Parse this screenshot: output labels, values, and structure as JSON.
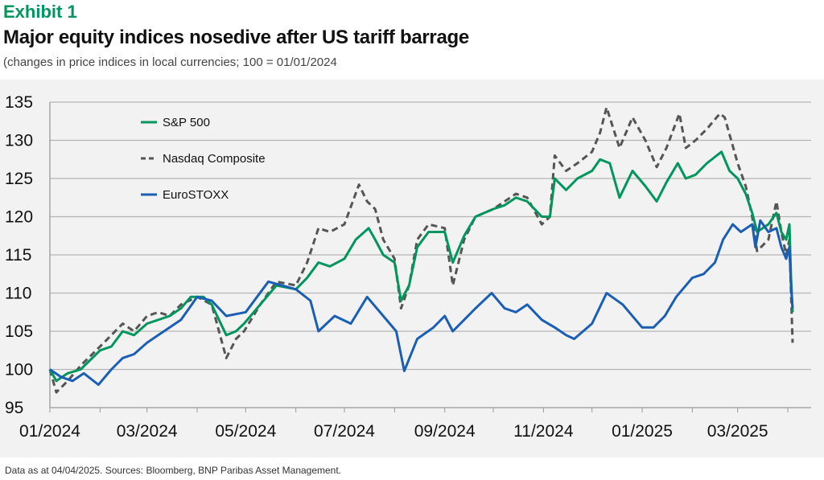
{
  "header": {
    "exhibit": "Exhibit 1",
    "title": "Major equity indices nosedive after US tariff barrage",
    "subtitle": "(changes in price indices in local currencies; 100 = 01/01/2024"
  },
  "footer": "Data as at 04/04/2025. Sources: Bloomberg, BNP Paribas Asset Management.",
  "chart_data": {
    "type": "line",
    "title": "Major equity indices nosedive after US tariff barrage",
    "xlabel": "",
    "ylabel": "",
    "ylim": [
      95,
      135
    ],
    "yticks": [
      "95",
      "100",
      "105",
      "110",
      "115",
      "120",
      "125",
      "130",
      "135"
    ],
    "xlim": [
      "2024-01-01",
      "2025-04-30"
    ],
    "xticks": [
      {
        "date": "2024-01-01",
        "label": "01/2024"
      },
      {
        "date": "2024-03-01",
        "label": "03/2024"
      },
      {
        "date": "2024-05-01",
        "label": "05/2024"
      },
      {
        "date": "2024-07-01",
        "label": "07/2024"
      },
      {
        "date": "2024-09-01",
        "label": "09/2024"
      },
      {
        "date": "2024-11-01",
        "label": "11/2024"
      },
      {
        "date": "2025-01-01",
        "label": "01/2025"
      },
      {
        "date": "2025-03-01",
        "label": "03/2025"
      }
    ],
    "minor_ticks": [
      "2024-02-01",
      "2024-04-01",
      "2024-06-01",
      "2024-08-01",
      "2024-10-01",
      "2024-12-01",
      "2025-02-01",
      "2025-04-01"
    ],
    "grid": true,
    "legend": "top-left",
    "series": [
      {
        "name": "S&P 500",
        "color": "#00965e",
        "dash": false,
        "points": [
          [
            "2024-01-01",
            100
          ],
          [
            "2024-01-05",
            98.5
          ],
          [
            "2024-01-12",
            99.5
          ],
          [
            "2024-01-20",
            100
          ],
          [
            "2024-02-01",
            102.5
          ],
          [
            "2024-02-08",
            103
          ],
          [
            "2024-02-15",
            105
          ],
          [
            "2024-02-22",
            104.5
          ],
          [
            "2024-03-01",
            106
          ],
          [
            "2024-03-08",
            106.5
          ],
          [
            "2024-03-15",
            107
          ],
          [
            "2024-03-22",
            108
          ],
          [
            "2024-03-28",
            109.5
          ],
          [
            "2024-04-05",
            109.5
          ],
          [
            "2024-04-10",
            108.5
          ],
          [
            "2024-04-19",
            104.5
          ],
          [
            "2024-04-25",
            105
          ],
          [
            "2024-04-30",
            106
          ],
          [
            "2024-05-10",
            108.5
          ],
          [
            "2024-05-20",
            111
          ],
          [
            "2024-06-01",
            110.5
          ],
          [
            "2024-06-08",
            112
          ],
          [
            "2024-06-15",
            114
          ],
          [
            "2024-06-22",
            113.5
          ],
          [
            "2024-07-01",
            114.5
          ],
          [
            "2024-07-08",
            117
          ],
          [
            "2024-07-16",
            118.5
          ],
          [
            "2024-07-20",
            117
          ],
          [
            "2024-07-25",
            115
          ],
          [
            "2024-08-01",
            114
          ],
          [
            "2024-08-05",
            109
          ],
          [
            "2024-08-10",
            111
          ],
          [
            "2024-08-15",
            116
          ],
          [
            "2024-08-22",
            118
          ],
          [
            "2024-09-01",
            118
          ],
          [
            "2024-09-06",
            114
          ],
          [
            "2024-09-13",
            117.5
          ],
          [
            "2024-09-20",
            120
          ],
          [
            "2024-10-01",
            121
          ],
          [
            "2024-10-08",
            121.5
          ],
          [
            "2024-10-15",
            122.5
          ],
          [
            "2024-10-22",
            122
          ],
          [
            "2024-10-31",
            120
          ],
          [
            "2024-11-05",
            120
          ],
          [
            "2024-11-08",
            125
          ],
          [
            "2024-11-15",
            123.5
          ],
          [
            "2024-11-22",
            125
          ],
          [
            "2024-12-01",
            126
          ],
          [
            "2024-12-06",
            127.5
          ],
          [
            "2024-12-12",
            127
          ],
          [
            "2024-12-18",
            122.5
          ],
          [
            "2024-12-26",
            126
          ],
          [
            "2025-01-03",
            124
          ],
          [
            "2025-01-10",
            122
          ],
          [
            "2025-01-16",
            124.5
          ],
          [
            "2025-01-23",
            127
          ],
          [
            "2025-01-28",
            125
          ],
          [
            "2025-02-03",
            125.5
          ],
          [
            "2025-02-10",
            127
          ],
          [
            "2025-02-19",
            128.5
          ],
          [
            "2025-02-24",
            126
          ],
          [
            "2025-03-01",
            125
          ],
          [
            "2025-03-06",
            123
          ],
          [
            "2025-03-10",
            120.5
          ],
          [
            "2025-03-13",
            118
          ],
          [
            "2025-03-20",
            119
          ],
          [
            "2025-03-25",
            120.5
          ],
          [
            "2025-03-28",
            118
          ],
          [
            "2025-03-31",
            117
          ],
          [
            "2025-04-02",
            119
          ],
          [
            "2025-04-03",
            112
          ],
          [
            "2025-04-04",
            107.5
          ]
        ]
      },
      {
        "name": "Nasdaq Composite",
        "color": "#555555",
        "dash": true,
        "points": [
          [
            "2024-01-01",
            100
          ],
          [
            "2024-01-05",
            97
          ],
          [
            "2024-01-12",
            98.5
          ],
          [
            "2024-01-20",
            100.5
          ],
          [
            "2024-02-01",
            103
          ],
          [
            "2024-02-08",
            104.5
          ],
          [
            "2024-02-15",
            106
          ],
          [
            "2024-02-22",
            105
          ],
          [
            "2024-03-01",
            107
          ],
          [
            "2024-03-08",
            107.5
          ],
          [
            "2024-03-15",
            107
          ],
          [
            "2024-03-22",
            108.5
          ],
          [
            "2024-04-01",
            109.5
          ],
          [
            "2024-04-10",
            108.5
          ],
          [
            "2024-04-19",
            101.5
          ],
          [
            "2024-04-25",
            104
          ],
          [
            "2024-04-30",
            105
          ],
          [
            "2024-05-10",
            108.5
          ],
          [
            "2024-05-20",
            111.5
          ],
          [
            "2024-06-01",
            111
          ],
          [
            "2024-06-08",
            114
          ],
          [
            "2024-06-15",
            118.5
          ],
          [
            "2024-06-22",
            118
          ],
          [
            "2024-07-01",
            119
          ],
          [
            "2024-07-10",
            124.2
          ],
          [
            "2024-07-15",
            122
          ],
          [
            "2024-07-20",
            121
          ],
          [
            "2024-07-25",
            117
          ],
          [
            "2024-08-01",
            114.5
          ],
          [
            "2024-08-05",
            108
          ],
          [
            "2024-08-10",
            111
          ],
          [
            "2024-08-15",
            117
          ],
          [
            "2024-08-22",
            119
          ],
          [
            "2024-09-01",
            118.5
          ],
          [
            "2024-09-06",
            111
          ],
          [
            "2024-09-13",
            117
          ],
          [
            "2024-09-20",
            120
          ],
          [
            "2024-10-01",
            121
          ],
          [
            "2024-10-08",
            122
          ],
          [
            "2024-10-15",
            123
          ],
          [
            "2024-10-22",
            122.5
          ],
          [
            "2024-10-31",
            119
          ],
          [
            "2024-11-05",
            120
          ],
          [
            "2024-11-08",
            128
          ],
          [
            "2024-11-15",
            126
          ],
          [
            "2024-11-22",
            127
          ],
          [
            "2024-12-01",
            128.5
          ],
          [
            "2024-12-06",
            131
          ],
          [
            "2024-12-10",
            134.3
          ],
          [
            "2024-12-18",
            129
          ],
          [
            "2024-12-26",
            133
          ],
          [
            "2025-01-03",
            130
          ],
          [
            "2025-01-10",
            126.5
          ],
          [
            "2025-01-16",
            129
          ],
          [
            "2025-01-24",
            133.5
          ],
          [
            "2025-01-28",
            129
          ],
          [
            "2025-02-03",
            130
          ],
          [
            "2025-02-10",
            131.5
          ],
          [
            "2025-02-18",
            133.5
          ],
          [
            "2025-02-21",
            133
          ],
          [
            "2025-03-01",
            127
          ],
          [
            "2025-03-06",
            124
          ],
          [
            "2025-03-10",
            120
          ],
          [
            "2025-03-13",
            115.5
          ],
          [
            "2025-03-20",
            117
          ],
          [
            "2025-03-25",
            122
          ],
          [
            "2025-03-28",
            118
          ],
          [
            "2025-03-31",
            115
          ],
          [
            "2025-04-02",
            117
          ],
          [
            "2025-04-03",
            110
          ],
          [
            "2025-04-04",
            103.5
          ]
        ]
      },
      {
        "name": "EuroSTOXX",
        "color": "#1a5fb4",
        "dash": false,
        "points": [
          [
            "2024-01-01",
            100
          ],
          [
            "2024-01-08",
            99
          ],
          [
            "2024-01-15",
            98.5
          ],
          [
            "2024-01-22",
            99.5
          ],
          [
            "2024-01-31",
            98
          ],
          [
            "2024-02-08",
            100
          ],
          [
            "2024-02-15",
            101.5
          ],
          [
            "2024-02-22",
            102
          ],
          [
            "2024-03-01",
            103.5
          ],
          [
            "2024-03-08",
            104.5
          ],
          [
            "2024-03-15",
            105.5
          ],
          [
            "2024-03-22",
            106.5
          ],
          [
            "2024-04-01",
            109.5
          ],
          [
            "2024-04-10",
            109
          ],
          [
            "2024-04-19",
            107
          ],
          [
            "2024-05-01",
            107.5
          ],
          [
            "2024-05-08",
            109.5
          ],
          [
            "2024-05-15",
            111.5
          ],
          [
            "2024-06-01",
            110.5
          ],
          [
            "2024-06-10",
            109
          ],
          [
            "2024-06-15",
            105
          ],
          [
            "2024-06-25",
            107
          ],
          [
            "2024-07-05",
            106
          ],
          [
            "2024-07-15",
            109.5
          ],
          [
            "2024-07-25",
            107
          ],
          [
            "2024-08-02",
            105
          ],
          [
            "2024-08-07",
            99.8
          ],
          [
            "2024-08-15",
            104
          ],
          [
            "2024-08-25",
            105.5
          ],
          [
            "2024-09-01",
            107
          ],
          [
            "2024-09-06",
            105
          ],
          [
            "2024-09-13",
            106.5
          ],
          [
            "2024-09-20",
            108
          ],
          [
            "2024-09-30",
            110
          ],
          [
            "2024-10-08",
            108
          ],
          [
            "2024-10-15",
            107.5
          ],
          [
            "2024-10-22",
            108.5
          ],
          [
            "2024-10-31",
            106.5
          ],
          [
            "2024-11-08",
            105.5
          ],
          [
            "2024-11-15",
            104.5
          ],
          [
            "2024-11-20",
            104
          ],
          [
            "2024-12-01",
            106
          ],
          [
            "2024-12-10",
            110
          ],
          [
            "2024-12-20",
            108.5
          ],
          [
            "2025-01-01",
            105.5
          ],
          [
            "2025-01-08",
            105.5
          ],
          [
            "2025-01-15",
            107
          ],
          [
            "2025-01-22",
            109.5
          ],
          [
            "2025-02-01",
            112
          ],
          [
            "2025-02-08",
            112.5
          ],
          [
            "2025-02-15",
            114
          ],
          [
            "2025-02-20",
            117
          ],
          [
            "2025-02-26",
            119
          ],
          [
            "2025-03-03",
            118
          ],
          [
            "2025-03-10",
            119
          ],
          [
            "2025-03-12",
            116
          ],
          [
            "2025-03-15",
            119.5
          ],
          [
            "2025-03-20",
            118
          ],
          [
            "2025-03-25",
            118.5
          ],
          [
            "2025-03-28",
            116
          ],
          [
            "2025-03-31",
            114.5
          ],
          [
            "2025-04-02",
            116
          ],
          [
            "2025-04-03",
            111
          ],
          [
            "2025-04-04",
            108
          ]
        ]
      }
    ]
  }
}
